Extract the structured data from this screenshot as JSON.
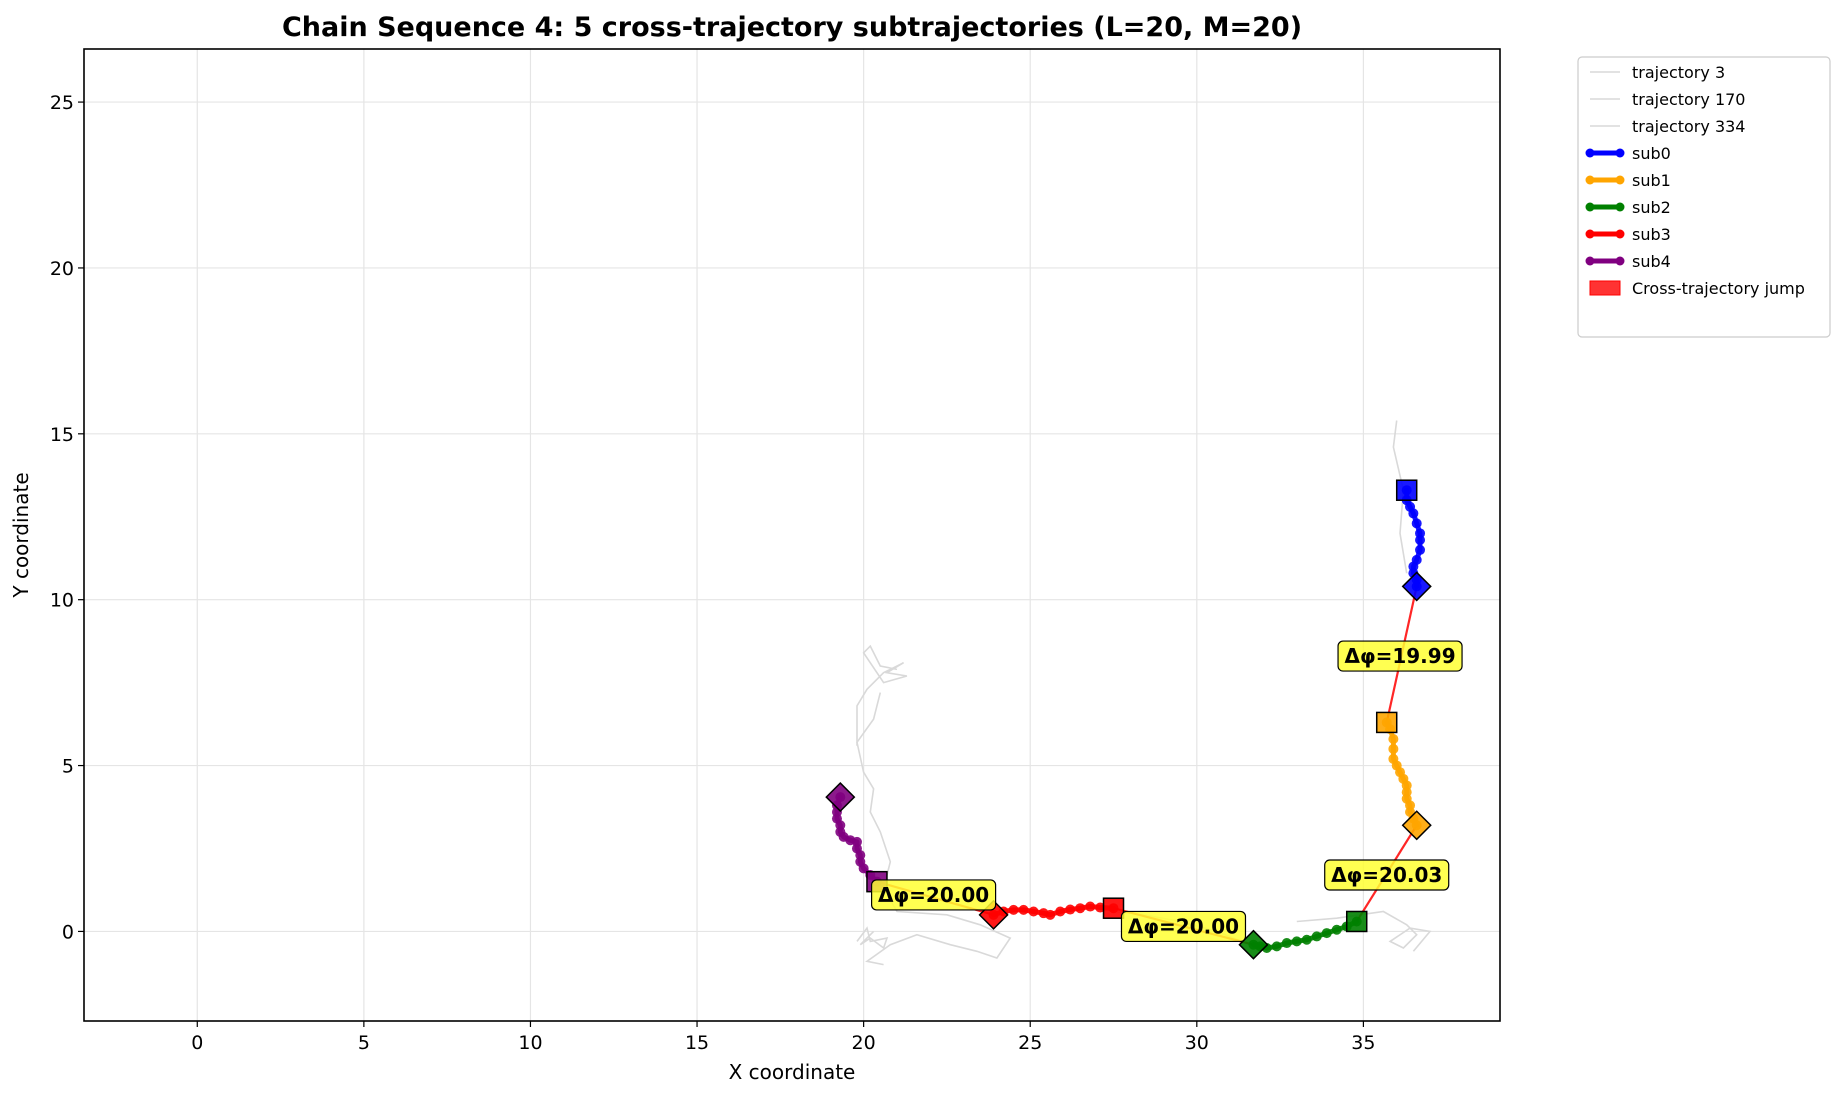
{
  "chart_data": {
    "type": "line",
    "title": "Chain Sequence 4: 5 cross-trajectory subtrajectories (L=20, M=20)",
    "xlabel": "X coordinate",
    "ylabel": "Y coordinate",
    "xlim": [
      -3.4,
      39.1
    ],
    "ylim": [
      -2.7,
      26.6
    ],
    "xticks": [
      0,
      5,
      10,
      15,
      20,
      25,
      30,
      35
    ],
    "yticks": [
      0,
      5,
      10,
      15,
      20,
      25
    ],
    "grid": true,
    "legend_position": "outside-upper-right",
    "background_trajectories": [
      {
        "name": "trajectory 3",
        "color": "#d9d9d9",
        "points": [
          [
            19.8,
            -0.3
          ],
          [
            20.1,
            0.1
          ],
          [
            20.2,
            -0.3
          ],
          [
            20.7,
            -0.2
          ],
          [
            20.6,
            -0.5
          ],
          [
            20.2,
            -0.2
          ],
          [
            19.9,
            -0.4
          ],
          [
            20.3,
            0.0
          ]
        ]
      },
      {
        "name": "trajectory 170",
        "color": "#d9d9d9",
        "points": [
          [
            20.5,
            7.2
          ],
          [
            20.3,
            6.4
          ],
          [
            19.8,
            5.7
          ],
          [
            20.0,
            4.8
          ],
          [
            20.3,
            4.3
          ],
          [
            20.2,
            3.6
          ],
          [
            20.5,
            3.0
          ],
          [
            20.8,
            2.1
          ],
          [
            20.6,
            1.3
          ],
          [
            21.0,
            0.6
          ],
          [
            22.5,
            0.5
          ],
          [
            23.5,
            0.2
          ],
          [
            24.4,
            -0.2
          ],
          [
            24.0,
            -0.8
          ],
          [
            23.4,
            -0.6
          ],
          [
            22.6,
            -0.4
          ],
          [
            21.6,
            -0.1
          ],
          [
            20.8,
            -0.4
          ],
          [
            20.1,
            -0.9
          ],
          [
            20.6,
            -1.0
          ]
        ]
      },
      {
        "name": "trajectory 334",
        "color": "#d9d9d9",
        "points": [
          [
            33.0,
            0.3
          ],
          [
            34.2,
            0.4
          ],
          [
            35.6,
            0.6
          ],
          [
            36.3,
            0.2
          ],
          [
            36.6,
            -0.1
          ],
          [
            36.2,
            -0.5
          ],
          [
            35.8,
            -0.3
          ],
          [
            36.4,
            0.1
          ],
          [
            37.0,
            0.0
          ],
          [
            36.5,
            -0.6
          ]
        ]
      }
    ],
    "background_extra": [
      [
        [
          19.8,
          5.6
        ],
        [
          19.8,
          6.8
        ],
        [
          20.1,
          7.3
        ],
        [
          20.6,
          7.8
        ],
        [
          21.2,
          8.1
        ],
        [
          20.7,
          7.8
        ],
        [
          21.3,
          7.7
        ],
        [
          20.6,
          7.5
        ],
        [
          20.0,
          8.4
        ],
        [
          20.2,
          8.6
        ],
        [
          20.5,
          8.0
        ],
        [
          21.0,
          7.9
        ]
      ],
      [
        [
          36.3,
          10.8
        ],
        [
          36.1,
          12.0
        ],
        [
          36.2,
          13.3
        ],
        [
          35.9,
          14.6
        ],
        [
          36.0,
          15.4
        ]
      ],
      [
        [
          27.5,
          0.6
        ],
        [
          28.4,
          0.5
        ],
        [
          29.5,
          0.3
        ],
        [
          30.6,
          0.0
        ],
        [
          31.6,
          -0.4
        ]
      ]
    ],
    "series": [
      {
        "name": "sub0",
        "color": "#0000ff",
        "points": [
          [
            36.3,
            13.3
          ],
          [
            36.3,
            13.0
          ],
          [
            36.4,
            12.8
          ],
          [
            36.5,
            12.6
          ],
          [
            36.6,
            12.3
          ],
          [
            36.7,
            12.0
          ],
          [
            36.7,
            11.8
          ],
          [
            36.7,
            11.5
          ],
          [
            36.6,
            11.2
          ],
          [
            36.5,
            11.0
          ],
          [
            36.5,
            10.8
          ],
          [
            36.6,
            10.6
          ],
          [
            36.6,
            10.4
          ]
        ]
      },
      {
        "name": "sub1",
        "color": "#ffa500",
        "points": [
          [
            35.7,
            6.3
          ],
          [
            35.8,
            6.1
          ],
          [
            35.9,
            5.8
          ],
          [
            35.9,
            5.5
          ],
          [
            35.9,
            5.2
          ],
          [
            36.0,
            5.0
          ],
          [
            36.1,
            4.8
          ],
          [
            36.2,
            4.6
          ],
          [
            36.3,
            4.4
          ],
          [
            36.3,
            4.2
          ],
          [
            36.3,
            4.0
          ],
          [
            36.4,
            3.8
          ],
          [
            36.4,
            3.6
          ],
          [
            36.5,
            3.4
          ],
          [
            36.6,
            3.2
          ]
        ]
      },
      {
        "name": "sub2",
        "color": "#008000",
        "points": [
          [
            34.8,
            0.3
          ],
          [
            34.5,
            0.15
          ],
          [
            34.2,
            0.05
          ],
          [
            33.9,
            -0.05
          ],
          [
            33.6,
            -0.15
          ],
          [
            33.3,
            -0.25
          ],
          [
            33.0,
            -0.3
          ],
          [
            32.7,
            -0.35
          ],
          [
            32.4,
            -0.45
          ],
          [
            32.1,
            -0.5
          ],
          [
            31.9,
            -0.45
          ],
          [
            31.7,
            -0.4
          ]
        ]
      },
      {
        "name": "sub3",
        "color": "#ff0000",
        "points": [
          [
            27.5,
            0.7
          ],
          [
            27.1,
            0.72
          ],
          [
            26.8,
            0.75
          ],
          [
            26.5,
            0.7
          ],
          [
            26.2,
            0.66
          ],
          [
            25.9,
            0.6
          ],
          [
            25.6,
            0.5
          ],
          [
            25.4,
            0.55
          ],
          [
            25.1,
            0.6
          ],
          [
            24.8,
            0.65
          ],
          [
            24.5,
            0.65
          ],
          [
            24.2,
            0.6
          ],
          [
            23.9,
            0.5
          ]
        ]
      },
      {
        "name": "sub4",
        "color": "#800080",
        "points": [
          [
            20.4,
            1.5
          ],
          [
            20.2,
            1.7
          ],
          [
            20.0,
            1.9
          ],
          [
            19.9,
            2.1
          ],
          [
            19.9,
            2.3
          ],
          [
            19.8,
            2.5
          ],
          [
            19.8,
            2.7
          ],
          [
            19.6,
            2.75
          ],
          [
            19.4,
            2.85
          ],
          [
            19.3,
            3.0
          ],
          [
            19.3,
            3.2
          ],
          [
            19.2,
            3.4
          ],
          [
            19.2,
            3.6
          ],
          [
            19.2,
            3.8
          ],
          [
            19.3,
            4.05
          ]
        ]
      }
    ],
    "jumps": [
      {
        "from": [
          36.6,
          10.4
        ],
        "to": [
          35.7,
          6.3
        ],
        "label": "Δφ=19.99",
        "label_pos": [
          36.1,
          8.3
        ]
      },
      {
        "from": [
          36.6,
          3.2
        ],
        "to": [
          34.8,
          0.3
        ],
        "label": "Δφ=20.03",
        "label_pos": [
          35.7,
          1.7
        ]
      },
      {
        "from": [
          31.7,
          -0.4
        ],
        "to": [
          27.5,
          0.7
        ],
        "label": "Δφ=20.00",
        "label_pos": [
          29.6,
          0.15
        ]
      },
      {
        "from": [
          23.9,
          0.5
        ],
        "to": [
          20.4,
          1.5
        ],
        "label": "Δφ=20.00",
        "label_pos": [
          22.1,
          1.1
        ]
      }
    ],
    "jump_color": "#ff0000",
    "annotation_color": "#ffff33",
    "legend": [
      {
        "label": "trajectory 3",
        "kind": "thin",
        "color": "#d9d9d9"
      },
      {
        "label": "trajectory 170",
        "kind": "thin",
        "color": "#d9d9d9"
      },
      {
        "label": "trajectory 334",
        "kind": "thin",
        "color": "#d9d9d9"
      },
      {
        "label": "sub0",
        "kind": "marker-line",
        "color": "#0000ff"
      },
      {
        "label": "sub1",
        "kind": "marker-line",
        "color": "#ffa500"
      },
      {
        "label": "sub2",
        "kind": "marker-line",
        "color": "#008000"
      },
      {
        "label": "sub3",
        "kind": "marker-line",
        "color": "#ff0000"
      },
      {
        "label": "sub4",
        "kind": "marker-line",
        "color": "#800080"
      },
      {
        "label": "Cross-trajectory jump",
        "kind": "patch",
        "color": "#ff0000"
      }
    ]
  }
}
